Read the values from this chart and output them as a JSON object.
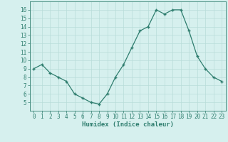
{
  "x": [
    0,
    1,
    2,
    3,
    4,
    5,
    6,
    7,
    8,
    9,
    10,
    11,
    12,
    13,
    14,
    15,
    16,
    17,
    18,
    19,
    20,
    21,
    22,
    23
  ],
  "y": [
    9.0,
    9.5,
    8.5,
    8.0,
    7.5,
    6.0,
    5.5,
    5.0,
    4.8,
    6.0,
    8.0,
    9.5,
    11.5,
    13.5,
    14.0,
    16.0,
    15.5,
    16.0,
    16.0,
    13.5,
    10.5,
    9.0,
    8.0,
    7.5
  ],
  "xlabel": "Humidex (Indice chaleur)",
  "ylim": [
    4,
    17
  ],
  "xlim": [
    -0.5,
    23.5
  ],
  "yticks": [
    5,
    6,
    7,
    8,
    9,
    10,
    11,
    12,
    13,
    14,
    15,
    16
  ],
  "xticks": [
    0,
    1,
    2,
    3,
    4,
    5,
    6,
    7,
    8,
    9,
    10,
    11,
    12,
    13,
    14,
    15,
    16,
    17,
    18,
    19,
    20,
    21,
    22,
    23
  ],
  "xtick_labels": [
    "0",
    "1",
    "2",
    "3",
    "4",
    "5",
    "6",
    "7",
    "8",
    "9",
    "10",
    "11",
    "12",
    "13",
    "14",
    "15",
    "16",
    "17",
    "18",
    "19",
    "20",
    "21",
    "22",
    "23"
  ],
  "line_color": "#2e7d6e",
  "marker_color": "#2e7d6e",
  "bg_color": "#d6f0ee",
  "grid_color": "#b8ddd9",
  "tick_color": "#2e7d6e",
  "label_color": "#2e7d6e",
  "xlabel_fontsize": 6.5,
  "tick_fontsize": 5.5
}
